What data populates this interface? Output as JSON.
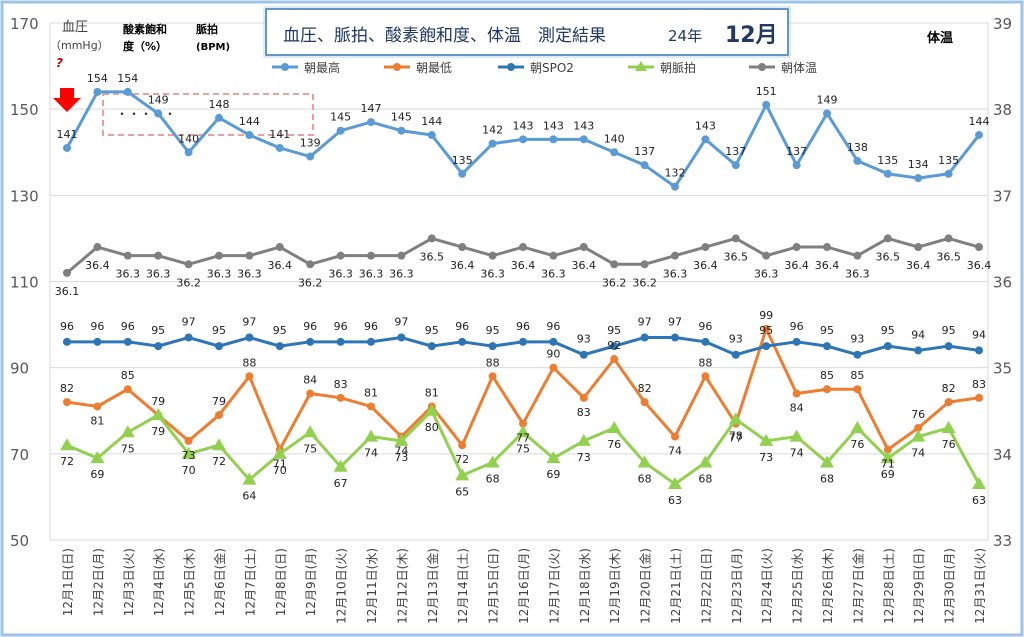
{
  "chart_data": {
    "type": "line",
    "title": "血圧、脈拍、酸素飽和度、体温　測定結果",
    "title_year": "24年",
    "title_month": "12月",
    "left_axis_labels": {
      "bp_label": "血圧",
      "bp_unit": "（mmHg）",
      "spo2_label_line1": "酸素飽和",
      "spo2_label_line2": "度（%）",
      "pulse_label_line1": "脈拍",
      "pulse_label_line2": "(BPM)",
      "question_mark": "?"
    },
    "right_axis_label": "体温",
    "y_left": {
      "range": [
        50,
        170
      ],
      "ticks": [
        "50",
        "70",
        "90",
        "110",
        "130",
        "150",
        "170"
      ]
    },
    "y_right": {
      "range": [
        33,
        39
      ],
      "ticks": [
        "33",
        "34",
        "35",
        "36",
        "37",
        "38",
        "39"
      ]
    },
    "grid": "horizontal",
    "legend_position": "top",
    "categories": [
      "12月1日(日)",
      "12月2日(月)",
      "12月3日(火)",
      "12月4日(水)",
      "12月5日(木)",
      "12月6日(金)",
      "12月7日(土)",
      "12月8日(日)",
      "12月9日(月)",
      "12月10日(火)",
      "12月11日(水)",
      "12月12日(木)",
      "12月13日(金)",
      "12月14日(土)",
      "12月15日(日)",
      "12月16日(月)",
      "12月17日(火)",
      "12月18日(水)",
      "12月19日(木)",
      "12月20日(金)",
      "12月21日(土)",
      "12月22日(日)",
      "12月23日(月)",
      "12月24日(火)",
      "12月25日(水)",
      "12月26日(木)",
      "12月27日(金)",
      "12月28日(土)",
      "12月29日(日)",
      "12月30日(月)",
      "12月31日(火)"
    ],
    "series": [
      {
        "name": "朝最高",
        "axis": "left",
        "color": "#5b9bd5",
        "marker": "circle",
        "values": [
          141,
          154,
          154,
          149,
          140,
          148,
          144,
          141,
          139,
          145,
          147,
          145,
          144,
          135,
          142,
          143,
          143,
          143,
          140,
          137,
          132,
          143,
          137,
          151,
          137,
          149,
          138,
          135,
          134,
          135,
          144
        ]
      },
      {
        "name": "朝最低",
        "axis": "left",
        "color": "#ed7d31",
        "marker": "circle",
        "values": [
          82,
          81,
          85,
          79,
          73,
          79,
          88,
          71,
          84,
          83,
          81,
          74,
          81,
          72,
          88,
          77,
          90,
          83,
          92,
          82,
          74,
          88,
          77,
          99,
          84,
          85,
          85,
          71,
          76,
          82,
          83
        ]
      },
      {
        "name": "朝SPO2",
        "axis": "left",
        "color": "#2e75b6",
        "marker": "circle",
        "values": [
          96,
          96,
          96,
          95,
          97,
          95,
          97,
          95,
          96,
          96,
          96,
          97,
          95,
          96,
          95,
          96,
          96,
          93,
          95,
          97,
          97,
          96,
          93,
          95,
          96,
          95,
          93,
          95,
          94,
          95,
          94
        ]
      },
      {
        "name": "朝脈拍",
        "axis": "left",
        "color": "#92d050",
        "marker": "triangle",
        "values": [
          72,
          69,
          75,
          79,
          70,
          72,
          64,
          70,
          75,
          67,
          74,
          73,
          80,
          65,
          68,
          75,
          69,
          73,
          76,
          68,
          63,
          68,
          78,
          73,
          74,
          68,
          76,
          69,
          74,
          76,
          63
        ]
      },
      {
        "name": "朝体温",
        "axis": "right",
        "color": "#7f7f7f",
        "marker": "circle",
        "values": [
          36.1,
          36.4,
          36.3,
          36.3,
          36.2,
          36.3,
          36.3,
          36.4,
          36.2,
          36.3,
          36.3,
          36.3,
          36.5,
          36.4,
          36.3,
          36.4,
          36.3,
          36.4,
          36.2,
          36.2,
          36.3,
          36.4,
          36.5,
          36.3,
          36.4,
          36.4,
          36.3,
          36.5,
          36.4,
          36.5,
          36.4
        ],
        "labels": [
          "36.1",
          "36.4",
          "36.3",
          "36.3",
          "36.2",
          "36.3",
          "36.3",
          "36.4",
          "36.2",
          "36.3",
          "36.3",
          "36.3",
          "36.5",
          "36.4",
          "36.3",
          "36.4",
          "36.3",
          "36.4",
          "36.2",
          "36.2",
          "36.3",
          "36.4",
          "36.5",
          "36.3",
          "36.4",
          "36.4",
          "36.3",
          "36.5",
          "36.4",
          "36.5",
          "36.4"
        ]
      }
    ],
    "annotations": {
      "dots": "・・・・・"
    }
  },
  "colors": {
    "frame": "#9dc3e6",
    "arrow": "#ff0000",
    "title_border": "#2e75b6",
    "dashed_box": "#e8a0a0"
  }
}
